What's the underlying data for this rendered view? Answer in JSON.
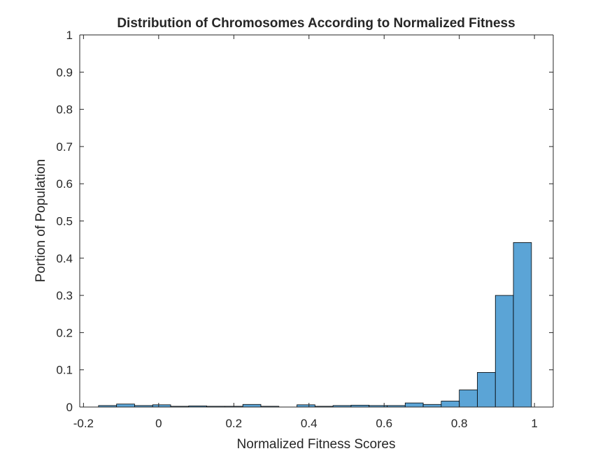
{
  "chart_data": {
    "type": "bar",
    "title": "Distribution of Chromosomes According to Normalized Fitness",
    "xlabel": "Normalized Fitness Scores",
    "ylabel": "Portion of Population",
    "xlim": [
      -0.21,
      1.05
    ],
    "ylim": [
      0,
      1
    ],
    "x_ticks": [
      "-0.2",
      "0",
      "0.2",
      "0.4",
      "0.6",
      "0.8",
      "1"
    ],
    "x_tick_values": [
      -0.2,
      0,
      0.2,
      0.4,
      0.6,
      0.8,
      1
    ],
    "y_ticks": [
      "0",
      "0.1",
      "0.2",
      "0.3",
      "0.4",
      "0.5",
      "0.6",
      "0.7",
      "0.8",
      "0.9",
      "1"
    ],
    "y_tick_values": [
      0,
      0.1,
      0.2,
      0.3,
      0.4,
      0.5,
      0.6,
      0.7,
      0.8,
      0.9,
      1
    ],
    "grid": false,
    "bar_color": "#5ba4d6",
    "bar_edge_color": "#000000",
    "bins": [
      {
        "x0": -0.16,
        "x1": -0.112,
        "value": 0.004
      },
      {
        "x0": -0.112,
        "x1": -0.064,
        "value": 0.008
      },
      {
        "x0": -0.064,
        "x1": -0.016,
        "value": 0.004
      },
      {
        "x0": -0.016,
        "x1": 0.032,
        "value": 0.006
      },
      {
        "x0": 0.032,
        "x1": 0.08,
        "value": 0.002
      },
      {
        "x0": 0.08,
        "x1": 0.128,
        "value": 0.003
      },
      {
        "x0": 0.128,
        "x1": 0.176,
        "value": 0.002
      },
      {
        "x0": 0.176,
        "x1": 0.224,
        "value": 0.002
      },
      {
        "x0": 0.224,
        "x1": 0.272,
        "value": 0.007
      },
      {
        "x0": 0.272,
        "x1": 0.32,
        "value": 0.002
      },
      {
        "x0": 0.32,
        "x1": 0.368,
        "value": 0.0
      },
      {
        "x0": 0.368,
        "x1": 0.416,
        "value": 0.006
      },
      {
        "x0": 0.416,
        "x1": 0.464,
        "value": 0.002
      },
      {
        "x0": 0.464,
        "x1": 0.512,
        "value": 0.004
      },
      {
        "x0": 0.512,
        "x1": 0.56,
        "value": 0.005
      },
      {
        "x0": 0.56,
        "x1": 0.608,
        "value": 0.004
      },
      {
        "x0": 0.608,
        "x1": 0.656,
        "value": 0.004
      },
      {
        "x0": 0.656,
        "x1": 0.704,
        "value": 0.011
      },
      {
        "x0": 0.704,
        "x1": 0.752,
        "value": 0.007
      },
      {
        "x0": 0.752,
        "x1": 0.8,
        "value": 0.016
      },
      {
        "x0": 0.8,
        "x1": 0.848,
        "value": 0.046
      },
      {
        "x0": 0.848,
        "x1": 0.896,
        "value": 0.093
      },
      {
        "x0": 0.896,
        "x1": 0.944,
        "value": 0.3
      },
      {
        "x0": 0.944,
        "x1": 0.992,
        "value": 0.442
      }
    ]
  }
}
